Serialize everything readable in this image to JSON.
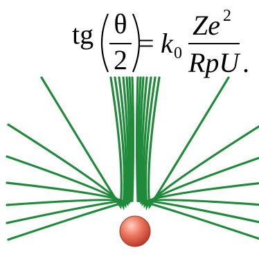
{
  "formula": {
    "function": "tg",
    "angle": "θ",
    "angle_divisor": "2",
    "equals": "=",
    "coefficient": "k",
    "coefficient_subscript": "0",
    "numerator": "Ze",
    "numerator_exponent": "2",
    "denominator": "RpU",
    "period": "."
  }
}
